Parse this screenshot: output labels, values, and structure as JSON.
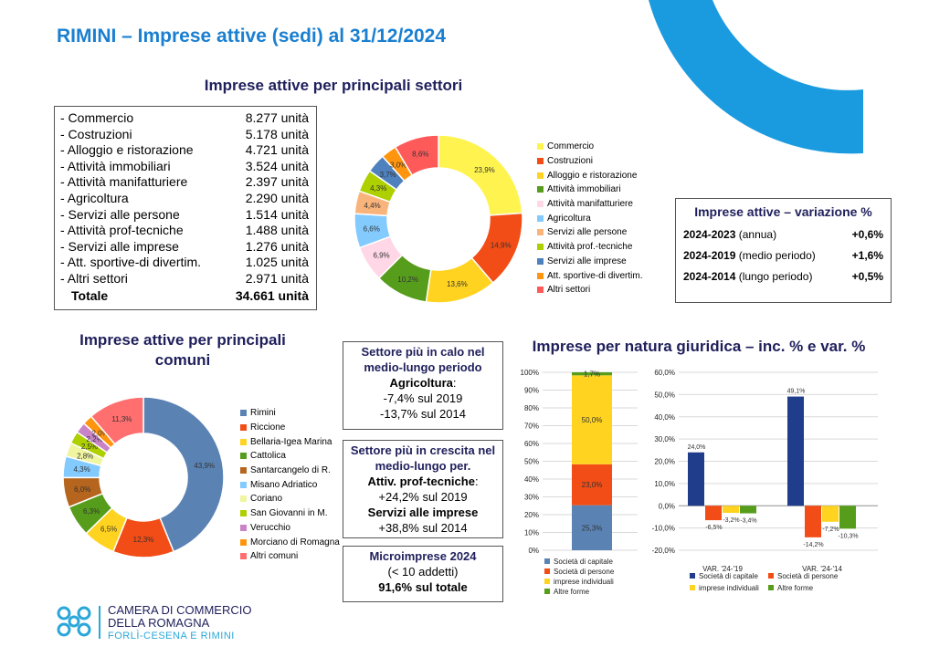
{
  "page_title": "RIMINI – Imprese attive (sedi) al 31/12/2024",
  "sectors_title": "Imprese attive per principali settori",
  "sectors_table": {
    "rows": [
      {
        "label": "- Commercio",
        "value": "8.277 unità"
      },
      {
        "label": "- Costruzioni",
        "value": "5.178 unità"
      },
      {
        "label": "- Alloggio e ristorazione",
        "value": "4.721 unità"
      },
      {
        "label": "- Attività immobiliari",
        "value": "3.524 unità"
      },
      {
        "label": "- Attività manifatturiere",
        "value": "2.397 unità"
      },
      {
        "label": "- Agricoltura",
        "value": "2.290 unità"
      },
      {
        "label": "- Servizi alle persone",
        "value": "1.514 unità"
      },
      {
        "label": "- Attività prof-tecniche",
        "value": "1.488 unità"
      },
      {
        "label": "- Servizi alle imprese",
        "value": "1.276 unità"
      },
      {
        "label": "- Att. sportive-di divertim.",
        "value": "1.025 unità"
      },
      {
        "label": "- Altri settori",
        "value": "2.971 unità"
      }
    ],
    "total_label": "Totale",
    "total_value": "34.661 unità"
  },
  "variation_box": {
    "title": "Imprese attive – variazione %",
    "rows": [
      {
        "period": "2024-2023",
        "note": " (annua)",
        "value": "+0,6%"
      },
      {
        "period": "2024-2019",
        "note": " (medio periodo)",
        "value": "+1,6%"
      },
      {
        "period": "2024-2014",
        "note": " (lungo periodo)",
        "value": "+0,5%"
      }
    ]
  },
  "municipalities_title": "Imprese attive per principali comuni",
  "legal_title": "Imprese per natura giuridica – inc. % e var. %",
  "info_boxes": {
    "decline": {
      "title": "Settore più in calo nel medio-lungo periodo",
      "sector": "Agricoltura",
      "line1": "-7,4% sul 2019",
      "line2": "-13,7% sul 2014"
    },
    "growth": {
      "title": "Settore più in crescita nel medio-lungo per.",
      "sector1": "Attiv. prof-tecniche",
      "line1": "+24,2% sul 2019",
      "sector2": "Servizi alle imprese",
      "line2": "+38,8% sul 2014"
    },
    "micro": {
      "title": "Microimprese 2024",
      "line1": "(< 10 addetti)",
      "line2": "91,6% sul totale"
    }
  },
  "logo": {
    "line1": "CAMERA DI COMMERCIO",
    "line2": "DELLA ROMAGNA",
    "line3": "FORLÌ-CESENA E RIMINI"
  },
  "colors": {
    "accent": "#1a7fd0",
    "navy": "#1f1f5c",
    "arc": "#1a9be0"
  },
  "chart_data": [
    {
      "type": "pie",
      "variant": "donut",
      "categories": [
        "Commercio",
        "Costruzioni",
        "Alloggio e ristorazione",
        "Attività immobiliari",
        "Attività manifatturiere",
        "Agricoltura",
        "Servizi alle persone",
        "Attività prof.-tecniche",
        "Servizi alle imprese",
        "Att. sportive-di divertim.",
        "Altri settori"
      ],
      "values": [
        23.9,
        14.9,
        13.6,
        10.2,
        6.9,
        6.6,
        4.4,
        4.3,
        3.7,
        3.0,
        8.6
      ],
      "labels": [
        "23,9%",
        "14,9%",
        "13,6%",
        "10,2%",
        "6,9%",
        "6,6%",
        "4,4%",
        "4,3%",
        "3,7%",
        "3,0%",
        "8,6%"
      ],
      "colors": [
        "#fff44f",
        "#f24d16",
        "#ffd320",
        "#579d1c",
        "#ffd7e6",
        "#83caff",
        "#f9b47b",
        "#aecf00",
        "#4e81bd",
        "#ff950e",
        "#ff5a5a"
      ],
      "legend": "right"
    },
    {
      "type": "pie",
      "variant": "donut",
      "categories": [
        "Rimini",
        "Riccione",
        "Bellaria-Igea Marina",
        "Cattolica",
        "Santarcangelo di R.",
        "Misano Adriatico",
        "Coriano",
        "San Giovanni in M.",
        "Verucchio",
        "Morciano di Romagna",
        "Altri comuni"
      ],
      "values": [
        43.9,
        12.3,
        6.5,
        6.3,
        6.0,
        4.3,
        2.8,
        2.5,
        2.2,
        2.0,
        11.3
      ],
      "labels": [
        "43,9%",
        "12,3%",
        "6,5%",
        "6,3%",
        "6,0%",
        "4,3%",
        "2,8%",
        "2,5%",
        "2,2%",
        "2,0%",
        "11,3%"
      ],
      "colors": [
        "#5a83b4",
        "#f24d16",
        "#ffd320",
        "#579d1c",
        "#b5651d",
        "#83caff",
        "#f0f5a0",
        "#aecf00",
        "#c984c8",
        "#ff950e",
        "#ff6f6f"
      ],
      "legend": "right"
    },
    {
      "type": "bar",
      "variant": "stacked-100",
      "categories": [
        ""
      ],
      "series": [
        {
          "name": "Società di capitale",
          "values": [
            25.3
          ],
          "label": "25,3%",
          "color": "#5a83b4"
        },
        {
          "name": "Società di persone",
          "values": [
            23.0
          ],
          "label": "23,0%",
          "color": "#f24d16"
        },
        {
          "name": "imprese individuali",
          "values": [
            50.0
          ],
          "label": "50,0%",
          "color": "#ffd320"
        },
        {
          "name": "Altre forme",
          "values": [
            1.7
          ],
          "label": "1,7%",
          "color": "#579d1c"
        }
      ],
      "ylim": [
        0,
        100
      ],
      "yticks": [
        "0%",
        "10%",
        "20%",
        "30%",
        "40%",
        "50%",
        "60%",
        "70%",
        "80%",
        "90%",
        "100%"
      ],
      "grid": true,
      "legend": "bottom"
    },
    {
      "type": "bar",
      "categories": [
        "VAR. '24-'19",
        "VAR. '24-'14"
      ],
      "series": [
        {
          "name": "Società di capitale",
          "values": [
            24.0,
            49.1
          ],
          "labels": [
            "24,0%",
            "49,1%"
          ],
          "color": "#1f3d8a"
        },
        {
          "name": "Società di persone",
          "values": [
            -6.5,
            -14.2
          ],
          "labels": [
            "-6,5%",
            "-14,2%"
          ],
          "color": "#f24d16"
        },
        {
          "name": "imprese individuali",
          "values": [
            -3.2,
            -7.2
          ],
          "labels": [
            "-3,2%",
            "-7,2%"
          ],
          "color": "#ffd320"
        },
        {
          "name": "Altre forme",
          "values": [
            -3.4,
            -10.3
          ],
          "labels": [
            "-3,4%",
            "-10,3%"
          ],
          "color": "#579d1c"
        }
      ],
      "ylim": [
        -20,
        60
      ],
      "yticks": [
        "-20,0%",
        "-10,0%",
        "0,0%",
        "10,0%",
        "20,0%",
        "30,0%",
        "40,0%",
        "50,0%",
        "60,0%"
      ],
      "grid": true,
      "legend": "bottom"
    }
  ]
}
